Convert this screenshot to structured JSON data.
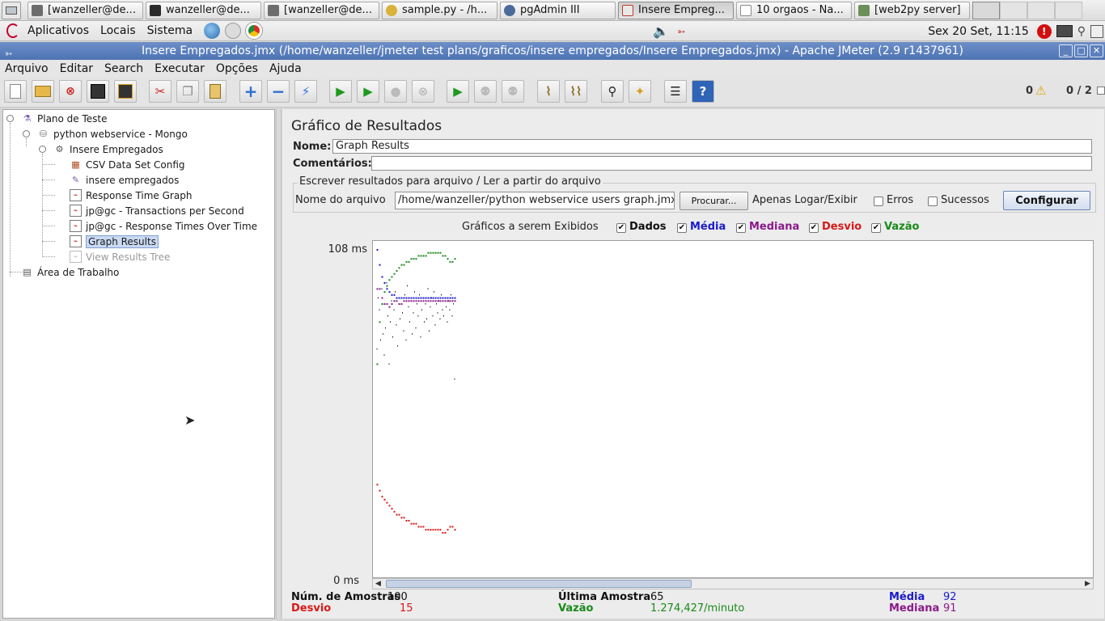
{
  "taskbar": {
    "tasks": [
      {
        "label": "[wanzeller@de...",
        "icon": "terminal-icon",
        "color": "#6d6d6d"
      },
      {
        "label": "wanzeller@de...",
        "icon": "terminal-icon",
        "color": "#2b2b2b"
      },
      {
        "label": "[wanzeller@de...",
        "icon": "terminal-icon",
        "color": "#6d6d6d"
      },
      {
        "label": "sample.py - /h...",
        "icon": "editor-icon",
        "color": "#d8b23a"
      },
      {
        "label": "pgAdmin III",
        "icon": "elephant-icon",
        "color": "#4a6b9a"
      },
      {
        "label": "Insere Empreg...",
        "icon": "jmeter-icon",
        "color": "#c0392b"
      },
      {
        "label": "10 orgaos - Na...",
        "icon": "browser-icon",
        "color": "#8a8a8a"
      },
      {
        "label": "[web2py server]",
        "icon": "window-icon",
        "color": "#6f8f5a"
      }
    ]
  },
  "panel": {
    "menus": [
      "Aplicativos",
      "Locais",
      "Sistema"
    ],
    "clock": "Sex 20 Set, 11:15"
  },
  "window": {
    "title": "Insere Empregados.jmx (/home/wanzeller/jmeter test plans/graficos/insere empregados/Insere Empregados.jmx) - Apache JMeter (2.9 r1437961)",
    "menu": [
      "Arquivo",
      "Editar",
      "Search",
      "Executar",
      "Opções",
      "Ajuda"
    ],
    "warnings_count": "0",
    "threads": "0 / 2"
  },
  "tree": {
    "nodes": [
      {
        "label": "Plano de Teste",
        "icon": "flask-icon"
      },
      {
        "label": "python webservice - Mongo",
        "icon": "thread-group-icon"
      },
      {
        "label": "Insere Empregados",
        "icon": "controller-icon"
      },
      {
        "label": "CSV Data Set Config",
        "icon": "csv-config-icon"
      },
      {
        "label": "insere empregados",
        "icon": "sampler-icon"
      },
      {
        "label": "Response Time Graph",
        "icon": "graph-icon"
      },
      {
        "label": "jp@gc - Transactions per Second",
        "icon": "graph-icon"
      },
      {
        "label": "jp@gc - Response Times Over Time",
        "icon": "graph-icon"
      },
      {
        "label": "Graph Results",
        "icon": "graph-icon"
      },
      {
        "label": "View Results Tree",
        "icon": "graph-icon"
      },
      {
        "label": "Área de Trabalho",
        "icon": "workbench-icon"
      }
    ]
  },
  "panel_main": {
    "title": "Gráfico de Resultados",
    "name_label": "Nome:",
    "name_value": "Graph Results",
    "comments_label": "Comentários:",
    "comments_value": "",
    "file_group_title": "Escrever resultados para arquivo / Ler a partir do arquivo",
    "filename_label": "Nome do arquivo",
    "filename_value": "/home/wanzeller/python webservice users graph.jmx",
    "browse_button": "Procurar...",
    "log_only_label": "Apenas Logar/Exibir",
    "errors_label": "Erros",
    "successes_label": "Sucessos",
    "configure_button": "Configurar",
    "graphs_label": "Gráficos a serem Exibidos",
    "checks": [
      {
        "label": "Dados",
        "checked": true,
        "color": "#111111"
      },
      {
        "label": "Média",
        "checked": true,
        "color": "#1a1acc"
      },
      {
        "label": "Mediana",
        "checked": true,
        "color": "#8b1a8b"
      },
      {
        "label": "Desvio",
        "checked": true,
        "color": "#d81818"
      },
      {
        "label": "Vazão",
        "checked": true,
        "color": "#1a8a1a"
      }
    ],
    "y_max_label": "108 ms",
    "y_min_label": "0 ms"
  },
  "chart_data": {
    "type": "scatter",
    "title": "",
    "ylabel": "",
    "xlabel": "",
    "ylim": [
      0,
      108
    ],
    "y_unit": "ms",
    "xlim": [
      0,
      100
    ],
    "series": [
      {
        "name": "Dados",
        "color": "#111111",
        "x": [
          1,
          2,
          3,
          4,
          5,
          6,
          7,
          8,
          9,
          10,
          11,
          12,
          13,
          14,
          15,
          16,
          17,
          18,
          19,
          20,
          21,
          22,
          23,
          24,
          25,
          26,
          27,
          28,
          29,
          30,
          31,
          32,
          33,
          34,
          35,
          36,
          37,
          38,
          39,
          40,
          41,
          42,
          43,
          44,
          45,
          46,
          47,
          48,
          49,
          50,
          51,
          52,
          53,
          54,
          55,
          56,
          57,
          58,
          59,
          60,
          61,
          62,
          63,
          64,
          65
        ],
        "values": [
          75,
          92,
          88,
          78,
          95,
          80,
          73,
          82,
          97,
          86,
          70,
          84,
          91,
          79,
          88,
          94,
          83,
          76,
          92,
          85,
          90,
          87,
          81,
          93,
          78,
          96,
          89,
          84,
          91,
          80,
          87,
          94,
          82,
          90,
          86,
          93,
          79,
          88,
          92,
          84,
          90,
          85,
          95,
          81,
          89,
          92,
          86,
          94,
          83,
          90,
          87,
          91,
          85,
          93,
          88,
          86,
          92,
          89,
          84,
          91,
          88,
          93,
          86,
          90,
          65
        ]
      },
      {
        "name": "Média",
        "color": "#1a1acc",
        "x": [
          1,
          3,
          5,
          7,
          9,
          11,
          13,
          15,
          17,
          19,
          21,
          23,
          25,
          27,
          29,
          31,
          33,
          35,
          37,
          39,
          41,
          43,
          45,
          47,
          49,
          51,
          53,
          55,
          57,
          59,
          61,
          63,
          65
        ],
        "values": [
          108,
          103,
          99,
          97,
          95,
          94,
          93,
          93,
          92,
          92,
          92,
          92,
          92,
          92,
          92,
          92,
          92,
          92,
          92,
          92,
          92,
          92,
          92,
          92,
          92,
          92,
          92,
          92,
          92,
          92,
          92,
          92,
          92
        ]
      },
      {
        "name": "Mediana",
        "color": "#8b1a8b",
        "x": [
          1,
          3,
          5,
          7,
          9,
          11,
          13,
          15,
          17,
          19,
          21,
          23,
          25,
          27,
          29,
          31,
          33,
          35,
          37,
          39,
          41,
          43,
          45,
          47,
          49,
          51,
          53,
          55,
          57,
          59,
          61,
          63,
          65
        ],
        "values": [
          95,
          95,
          92,
          90,
          90,
          89,
          90,
          91,
          91,
          90,
          90,
          91,
          91,
          91,
          91,
          91,
          91,
          91,
          91,
          91,
          91,
          91,
          91,
          91,
          91,
          91,
          91,
          91,
          91,
          91,
          91,
          91,
          91
        ]
      },
      {
        "name": "Desvio",
        "color": "#d81818",
        "x": [
          1,
          3,
          5,
          7,
          9,
          11,
          13,
          15,
          17,
          19,
          21,
          23,
          25,
          27,
          29,
          31,
          33,
          35,
          37,
          39,
          41,
          43,
          45,
          47,
          49,
          51,
          53,
          55,
          57,
          59,
          61,
          63,
          65
        ],
        "values": [
          30,
          28,
          26,
          25,
          24,
          23,
          22,
          21,
          20,
          20,
          19,
          19,
          18,
          18,
          17,
          17,
          17,
          16,
          16,
          16,
          15,
          15,
          15,
          15,
          15,
          15,
          15,
          14,
          14,
          15,
          16,
          16,
          15
        ]
      },
      {
        "name": "Vazão",
        "color": "#1a8a1a",
        "x": [
          1,
          3,
          5,
          7,
          9,
          11,
          13,
          15,
          17,
          19,
          21,
          23,
          25,
          27,
          29,
          31,
          33,
          35,
          37,
          39,
          41,
          43,
          45,
          47,
          49,
          51,
          53,
          55,
          57,
          59,
          61,
          63,
          65
        ],
        "values": [
          70,
          84,
          90,
          94,
          96,
          98,
          99,
          100,
          101,
          102,
          103,
          103,
          104,
          104,
          105,
          105,
          105,
          106,
          106,
          106,
          106,
          107,
          107,
          107,
          107,
          107,
          107,
          106,
          106,
          105,
          104,
          104,
          105
        ]
      }
    ]
  },
  "stats": {
    "samples_label": "Núm. de Amostras",
    "samples_value": "100",
    "last_label": "Última Amostra",
    "last_value": "65",
    "avg_label": "Média",
    "avg_value": "92",
    "dev_label": "Desvio",
    "dev_value": "15",
    "throughput_label": "Vazão",
    "throughput_value": "1.274,427/minuto",
    "median_label": "Mediana",
    "median_value": "91"
  }
}
